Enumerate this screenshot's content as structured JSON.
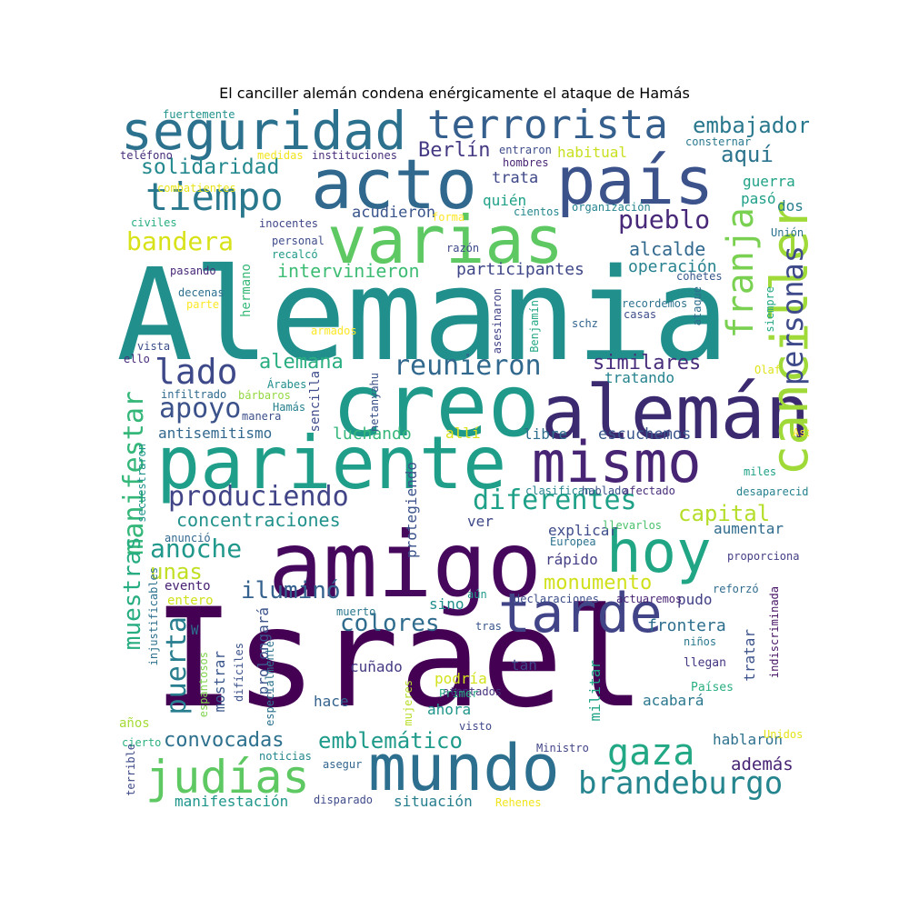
{
  "title": "El canciller alemán condena enérgicamente el ataque de Hamás",
  "words": [
    {
      "text": "Israel",
      "color": "#440154"
    },
    {
      "text": "Alemania",
      "color": "#21908d"
    },
    {
      "text": "amigo",
      "color": "#46085c"
    },
    {
      "text": "creo",
      "color": "#1f9a8a"
    },
    {
      "text": "alemán",
      "color": "#3b2a70"
    },
    {
      "text": "pariente",
      "color": "#1f9e89"
    },
    {
      "text": "mismo",
      "color": "#482475"
    },
    {
      "text": "acto",
      "color": "#31688e"
    },
    {
      "text": "país",
      "color": "#3b528b"
    },
    {
      "text": "varias",
      "color": "#5ec962"
    },
    {
      "text": "hoy",
      "color": "#21a685"
    },
    {
      "text": "mundo",
      "color": "#2d6f8e"
    },
    {
      "text": "tarde",
      "color": "#414487"
    },
    {
      "text": "seguridad",
      "color": "#2c728e"
    },
    {
      "text": "terrorista",
      "color": "#355f8d"
    },
    {
      "text": "judías",
      "color": "#5ec962"
    },
    {
      "text": "tiempo",
      "color": "#2a788e"
    },
    {
      "text": "cancill er",
      "color": "#a0da39"
    },
    {
      "text": "gaza",
      "color": "#22a884"
    },
    {
      "text": "brandeburgo",
      "color": "#25858e"
    },
    {
      "text": "lado",
      "color": "#3e4989"
    },
    {
      "text": "reunieron",
      "color": "#31688e"
    },
    {
      "text": "diferentes",
      "color": "#1fa088"
    },
    {
      "text": "produciendo",
      "color": "#414487"
    },
    {
      "text": "apoyo",
      "color": "#3b528b"
    },
    {
      "text": "pueblo",
      "color": "#482878"
    },
    {
      "text": "franja",
      "color": "#7ad151"
    },
    {
      "text": "personas",
      "color": "#3e4a89"
    },
    {
      "text": "solidaridad",
      "color": "#23898e"
    },
    {
      "text": "bandera",
      "color": "#d8e219"
    },
    {
      "text": "embajador",
      "color": "#2a788e"
    },
    {
      "text": "aquí",
      "color": "#2c738e"
    },
    {
      "text": "Berlín",
      "color": "#443983"
    },
    {
      "text": "iluminó",
      "color": "#34618d"
    },
    {
      "text": "colores",
      "color": "#2f6c8e"
    },
    {
      "text": "capital",
      "color": "#b5de2b"
    },
    {
      "text": "anoche",
      "color": "#1f988b"
    },
    {
      "text": "unas",
      "color": "#c2df23"
    },
    {
      "text": "manifestar",
      "color": "#35b779"
    },
    {
      "text": "muestras",
      "color": "#27ad81"
    },
    {
      "text": "puerta",
      "color": "#287d8e"
    },
    {
      "text": "emblemático",
      "color": "#1e9b8a"
    },
    {
      "text": "convocadas",
      "color": "#2d718e"
    },
    {
      "text": "monumento",
      "color": "#d0e11c"
    },
    {
      "text": "alemana",
      "color": "#28ae80"
    },
    {
      "text": "similares",
      "color": "#472d7b"
    },
    {
      "text": "intervinieron",
      "color": "#3dbc74"
    },
    {
      "text": "participantes",
      "color": "#3f4788"
    },
    {
      "text": "alcalde",
      "color": "#31688e"
    },
    {
      "text": "operación",
      "color": "#26828e"
    },
    {
      "text": "concentraciones",
      "color": "#21918c"
    },
    {
      "text": "antisemitismo",
      "color": "#31678e"
    },
    {
      "text": "luchando",
      "color": "#35b779"
    },
    {
      "text": "escuchemos",
      "color": "#39568c"
    },
    {
      "text": "tratando",
      "color": "#25838e"
    },
    {
      "text": "además",
      "color": "#482475"
    },
    {
      "text": "hablaron",
      "color": "#2d708e"
    },
    {
      "text": "frontera",
      "color": "#2e6f8e"
    },
    {
      "text": "manifestación",
      "color": "#1f968b"
    },
    {
      "text": "situación",
      "color": "#277f8e"
    },
    {
      "text": "acudieron",
      "color": "#39558c"
    },
    {
      "text": "quién",
      "color": "#1fa188"
    },
    {
      "text": "trata",
      "color": "#3f4889"
    },
    {
      "text": "habitual",
      "color": "#c8e020"
    },
    {
      "text": "guerra",
      "color": "#20a386"
    },
    {
      "text": "pasó",
      "color": "#1fa088"
    },
    {
      "text": "dos",
      "color": "#277f8e"
    },
    {
      "text": "explicar",
      "color": "#3e4c8a"
    },
    {
      "text": "rápido",
      "color": "#433e85"
    },
    {
      "text": "aumentar",
      "color": "#2f6b8e"
    },
    {
      "text": "ver",
      "color": "#3e4989"
    },
    {
      "text": "libre",
      "color": "#2e6e8e"
    },
    {
      "text": "allí",
      "color": "#dde318"
    },
    {
      "text": "sino",
      "color": "#218e8d"
    },
    {
      "text": "pudo",
      "color": "#423f85"
    },
    {
      "text": "tratar",
      "color": "#3b528b"
    },
    {
      "text": "militar",
      "color": "#20a486"
    },
    {
      "text": "acabará",
      "color": "#2a778e"
    },
    {
      "text": "cuñado",
      "color": "#443a83"
    },
    {
      "text": "hace",
      "color": "#33638d"
    },
    {
      "text": "tan",
      "color": "#3f4788"
    },
    {
      "text": "podría",
      "color": "#d2e21b"
    },
    {
      "text": "ahora",
      "color": "#1f958b"
    },
    {
      "text": "entero",
      "color": "#d0e11c"
    },
    {
      "text": "evento",
      "color": "#482173"
    },
    {
      "text": "mostrar",
      "color": "#39568c"
    },
    {
      "text": "prolongará",
      "color": "#3b528b"
    },
    {
      "text": "protegiendo",
      "color": "#3b528b"
    },
    {
      "text": "sencilla",
      "color": "#3e4c8a"
    },
    {
      "text": "hermano",
      "color": "#38b977"
    },
    {
      "text": "años",
      "color": "#a5db36"
    },
    {
      "text": "cierto",
      "color": "#2ab07f"
    },
    {
      "text": "noticias",
      "color": "#24878e"
    },
    {
      "text": "asegur",
      "color": "#32658e"
    },
    {
      "text": "disparado",
      "color": "#3e4c8a"
    },
    {
      "text": "Rehenes",
      "color": "#f1e51d"
    },
    {
      "text": "Ministro",
      "color": "#414487"
    },
    {
      "text": "Unidos",
      "color": "#e5e419"
    },
    {
      "text": "Países",
      "color": "#29af7f"
    },
    {
      "text": "llegan",
      "color": "#453581"
    },
    {
      "text": "niños",
      "color": "#2a788e"
    },
    {
      "text": "reforzó",
      "color": "#2f6c8e"
    },
    {
      "text": "proporciona",
      "color": "#433e85"
    },
    {
      "text": "miles",
      "color": "#1fa088"
    },
    {
      "text": "desaparecido",
      "color": "#26828e"
    },
    {
      "text": "llevarlos",
      "color": "#4ac16d"
    },
    {
      "text": "Europea",
      "color": "#2c728e"
    },
    {
      "text": "clasifican",
      "color": "#25838e"
    },
    {
      "text": "hablado",
      "color": "#3b528b"
    },
    {
      "text": "afectado",
      "color": "#472d7b"
    },
    {
      "text": "declaraciones",
      "color": "#3d4e8a"
    },
    {
      "text": "actuaremos",
      "color": "#482475"
    },
    {
      "text": "tras",
      "color": "#39568c"
    },
    {
      "text": "aún",
      "color": "#1f9a8a"
    },
    {
      "text": "muerto",
      "color": "#2a778e"
    },
    {
      "text": "atentados",
      "color": "#46327e"
    },
    {
      "text": "Primer",
      "color": "#25ac82"
    },
    {
      "text": "visto",
      "color": "#3e4989"
    },
    {
      "text": "mujeres",
      "color": "#b8de29"
    },
    {
      "text": "especialmente",
      "color": "#2c728e"
    },
    {
      "text": "difíciles",
      "color": "#3b528b"
    },
    {
      "text": "espantosos",
      "color": "#7fd34e"
    },
    {
      "text": "injustificables",
      "color": "#2d718e"
    },
    {
      "text": "terrible",
      "color": "#3e4a89"
    },
    {
      "text": "secuestraron",
      "color": "#20928c"
    },
    {
      "text": "anunció",
      "color": "#31678e"
    },
    {
      "text": "W",
      "color": "#2c738e"
    },
    {
      "text": "fuertemente",
      "color": "#20928c"
    },
    {
      "text": "teléfono",
      "color": "#472d7b"
    },
    {
      "text": "medidas",
      "color": "#f1e51d"
    },
    {
      "text": "instituciones",
      "color": "#472d7b"
    },
    {
      "text": "entraron",
      "color": "#3e4c8a"
    },
    {
      "text": "hombres",
      "color": "#482575"
    },
    {
      "text": "consternar",
      "color": "#2a788e"
    },
    {
      "text": "combatientes",
      "color": "#e7e419"
    },
    {
      "text": "civiles",
      "color": "#28ae80"
    },
    {
      "text": "inocentes",
      "color": "#3f4788"
    },
    {
      "text": "forma",
      "color": "#fde725"
    },
    {
      "text": "cientos",
      "color": "#24878e"
    },
    {
      "text": "organización",
      "color": "#25848e"
    },
    {
      "text": "Unión",
      "color": "#2c728e"
    },
    {
      "text": "personal",
      "color": "#3e4c8a"
    },
    {
      "text": "razón",
      "color": "#3e4989"
    },
    {
      "text": "recalcó",
      "color": "#1f998a"
    },
    {
      "text": "pasando",
      "color": "#482878"
    },
    {
      "text": "cohetes",
      "color": "#38588c"
    },
    {
      "text": "decenas",
      "color": "#2d708e"
    },
    {
      "text": "parte",
      "color": "#fde725"
    },
    {
      "text": "asesinaron",
      "color": "#414487"
    },
    {
      "text": "Benjamín",
      "color": "#22a884"
    },
    {
      "text": "recordemos",
      "color": "#2c728e"
    },
    {
      "text": "casas",
      "color": "#3d4d8a"
    },
    {
      "text": "ataque",
      "color": "#2e6e8e"
    },
    {
      "text": "siempre",
      "color": "#22a785"
    },
    {
      "text": "armados",
      "color": "#fde725"
    },
    {
      "text": "schz",
      "color": "#32648e"
    },
    {
      "text": "vista",
      "color": "#3d4d8a"
    },
    {
      "text": "ello",
      "color": "#472c7a"
    },
    {
      "text": "Olaf",
      "color": "#dfe318"
    },
    {
      "text": "infiltrado",
      "color": "#2f6b8e"
    },
    {
      "text": "bárbaros",
      "color": "#94d840"
    },
    {
      "text": "Árabes",
      "color": "#218f8d"
    },
    {
      "text": "Hamás",
      "color": "#27808e"
    },
    {
      "text": "manera",
      "color": "#3c508b"
    },
    {
      "text": "netanyahu",
      "color": "#3b528b"
    },
    {
      "text": "Así",
      "color": "#fde725"
    },
    {
      "text": "indiscriminada",
      "color": "#471365"
    }
  ]
}
